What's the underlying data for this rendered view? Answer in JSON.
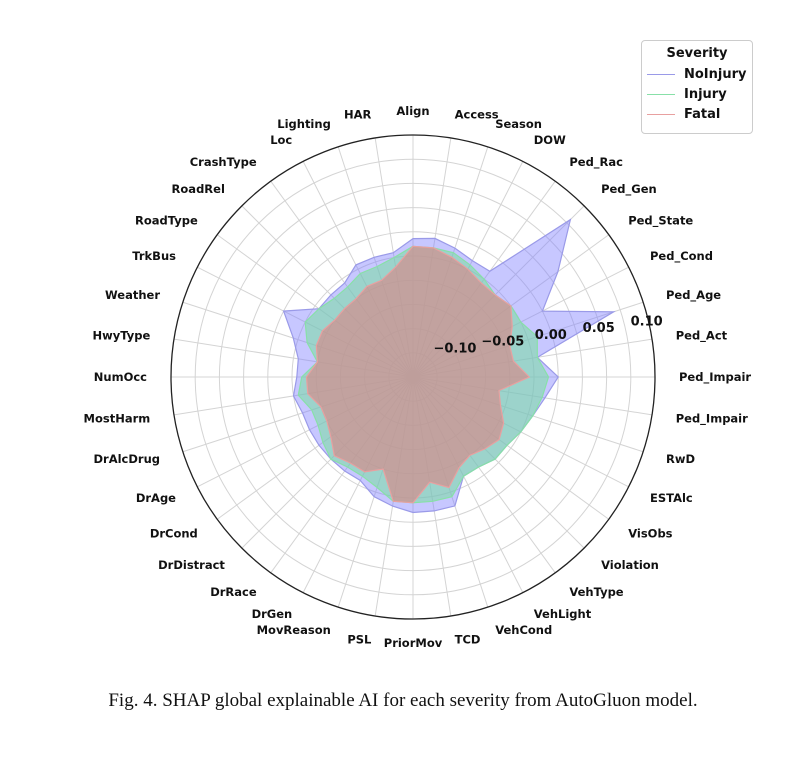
{
  "chart_data": {
    "type": "radar",
    "categories": [
      "Align",
      "Access",
      "Season",
      "DOW",
      "Ped_Rac",
      "Ped_Gen",
      "Ped_State",
      "Ped_Cond",
      "Ped_Age",
      "Ped_Act",
      "Ped_Impair",
      "Ped_Impair",
      "RwD",
      "ESTAlc",
      "VisObs",
      "Violation",
      "VehType",
      "VehLight",
      "VehCond",
      "TCD",
      "PriorMov",
      "PSL",
      "MovReason",
      "DrGen",
      "DrRace",
      "DrDistract",
      "DrCond",
      "DrAge",
      "DrAlcDrug",
      "MostHarm",
      "NumOcc",
      "HwyType",
      "Weather",
      "TrkBus",
      "RoadType",
      "RoadRel",
      "CrashType",
      "Loc",
      "Lighting",
      "HAR"
    ],
    "rlim": [
      -0.15,
      0.1
    ],
    "rticks": [
      -0.1,
      -0.05,
      0.0,
      0.05,
      0.1
    ],
    "rtick_labels": [
      "−0.10",
      "−0.05",
      "0.00",
      "0.05",
      "0.10"
    ],
    "legend_title": "Severity",
    "legend_position": "top-right",
    "series": [
      {
        "name": "NoInjury",
        "color": "#9a9ae8",
        "fill": "rgba(130,130,255,0.45)",
        "values": [
          -0.007,
          -0.005,
          -0.01,
          -0.015,
          -0.015,
          0.08,
          0.035,
          0.0,
          0.068,
          -0.02,
          0.0,
          -0.012,
          -0.02,
          -0.025,
          -0.03,
          -0.03,
          -0.035,
          -0.035,
          -0.01,
          -0.01,
          -0.01,
          -0.015,
          -0.02,
          -0.03,
          -0.03,
          -0.03,
          -0.03,
          -0.03,
          -0.03,
          -0.025,
          -0.03,
          -0.03,
          -0.02,
          0.0,
          -0.03,
          -0.03,
          -0.03,
          -0.02,
          -0.02,
          -0.02
        ]
      },
      {
        "name": "Injury",
        "color": "#88e0a8",
        "fill": "rgba(120,220,160,0.55)",
        "values": [
          -0.015,
          -0.015,
          -0.015,
          -0.02,
          -0.025,
          -0.03,
          -0.025,
          -0.025,
          -0.015,
          -0.02,
          -0.01,
          -0.015,
          -0.02,
          -0.025,
          -0.03,
          -0.03,
          -0.035,
          -0.035,
          -0.02,
          -0.02,
          -0.02,
          -0.02,
          -0.03,
          -0.035,
          -0.035,
          -0.03,
          -0.035,
          -0.04,
          -0.04,
          -0.03,
          -0.035,
          -0.05,
          -0.035,
          -0.025,
          -0.03,
          -0.035,
          -0.035,
          -0.03,
          -0.03,
          -0.025
        ]
      },
      {
        "name": "Fatal",
        "color": "#e8a0a0",
        "fill": "rgba(220,130,130,0.6)",
        "values": [
          -0.015,
          -0.015,
          -0.02,
          -0.025,
          -0.03,
          -0.03,
          -0.025,
          -0.035,
          -0.045,
          -0.045,
          -0.03,
          -0.06,
          -0.055,
          -0.045,
          -0.04,
          -0.045,
          -0.05,
          -0.045,
          -0.03,
          -0.04,
          -0.02,
          -0.02,
          -0.05,
          -0.04,
          -0.04,
          -0.035,
          -0.045,
          -0.05,
          -0.05,
          -0.04,
          -0.04,
          -0.05,
          -0.045,
          -0.045,
          -0.05,
          -0.05,
          -0.05,
          -0.045,
          -0.045,
          -0.035
        ]
      }
    ]
  },
  "legend": {
    "title": "Severity",
    "entries": [
      "NoInjury",
      "Injury",
      "Fatal"
    ]
  },
  "caption": "Fig. 4.   SHAP global explainable AI for each severity from AutoGluon model."
}
